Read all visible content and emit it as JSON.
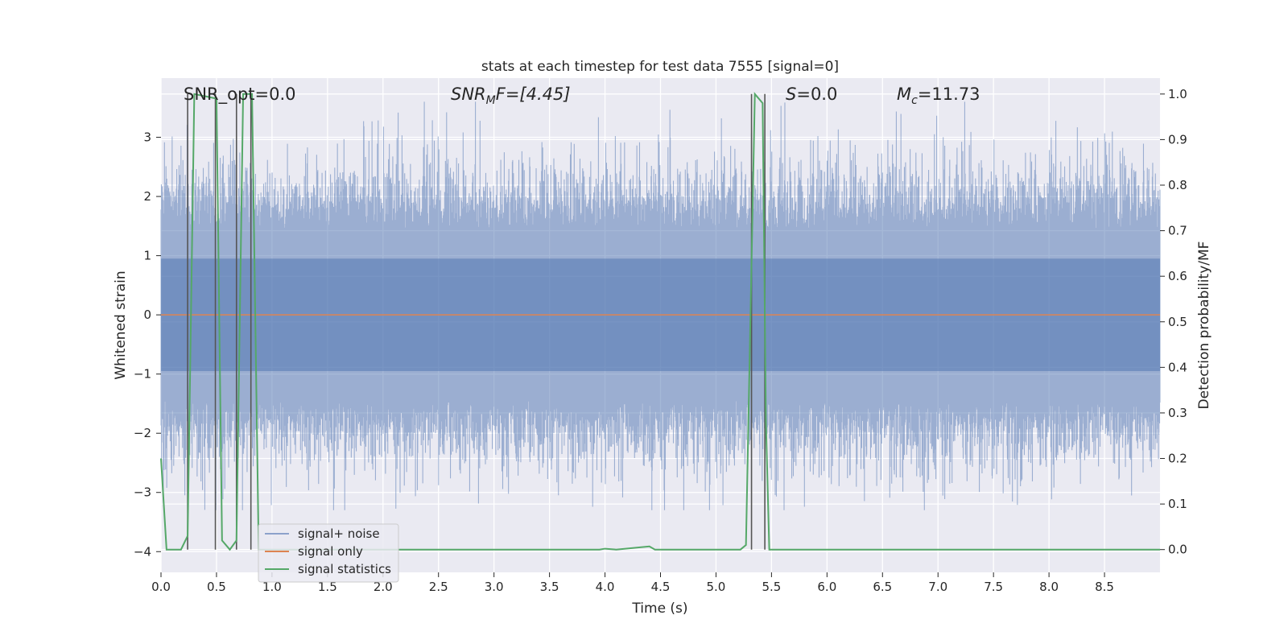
{
  "chart_data": {
    "type": "line",
    "title": "stats at each timestep for test data 7555 [signal=0]",
    "xlabel": "Time (s)",
    "ylabel": "Whitened strain",
    "y2label": "Detection probability/MF",
    "xlim": [
      0,
      9
    ],
    "ylim": [
      -4.35,
      4.0
    ],
    "y2lim": [
      -0.05,
      1.035
    ],
    "xticks": [
      "0.0",
      "0.5",
      "1.0",
      "1.5",
      "2.0",
      "2.5",
      "3.0",
      "3.5",
      "4.0",
      "4.5",
      "5.0",
      "5.5",
      "6.0",
      "6.5",
      "7.0",
      "7.5",
      "8.0",
      "8.5"
    ],
    "yticks": [
      "3",
      "2",
      "1",
      "0",
      "−1",
      "−2",
      "−3",
      "−4"
    ],
    "y2ticks": [
      "1.0",
      "0.9",
      "0.8",
      "0.7",
      "0.6",
      "0.5",
      "0.4",
      "0.3",
      "0.2",
      "0.1",
      "0.0"
    ],
    "grid": true,
    "legend_position": "lower-left",
    "annotations": {
      "snr_opt": "SNR_opt=0.0",
      "snr_mf_main": "SNR",
      "snr_mf_sub": "M",
      "snr_mf_rest": "F=[4.45]",
      "s_italic": "S",
      "s_rest": "=0.0",
      "mc_italic": "M",
      "mc_sub": "c",
      "mc_rest": "=11.73"
    },
    "series": [
      {
        "name": "signal+ noise",
        "color": "#4c72b0",
        "kind": "noise",
        "envelope": 1.45,
        "y_range": [
          -3.3,
          3.6
        ]
      },
      {
        "name": "signal only",
        "color": "#dd8452",
        "x": [
          0,
          9
        ],
        "y": [
          0,
          0
        ]
      },
      {
        "name": "signal statistics",
        "color": "#55a868",
        "axis": "right",
        "x": [
          0.0,
          0.05,
          0.18,
          0.24,
          0.3,
          0.5,
          0.55,
          0.62,
          0.68,
          0.74,
          0.82,
          0.88,
          3.95,
          4.0,
          4.1,
          4.4,
          4.45,
          4.55,
          5.22,
          5.27,
          5.35,
          5.42,
          5.45,
          5.48,
          9.0
        ],
        "y": [
          0.2,
          0.0,
          0.0,
          0.03,
          1.0,
          0.99,
          0.02,
          0.0,
          0.02,
          1.0,
          1.0,
          0.0,
          0.0,
          0.002,
          0.0,
          0.007,
          0.0,
          0.0,
          0.0,
          0.01,
          1.0,
          0.98,
          0.28,
          0.0,
          0.0
        ]
      }
    ],
    "vlines": [
      {
        "x": 0.24,
        "y": [
          0.0,
          1.0
        ]
      },
      {
        "x": 0.49,
        "y": [
          0.0,
          1.0
        ]
      },
      {
        "x": 0.68,
        "y": [
          0.0,
          1.0
        ]
      },
      {
        "x": 0.81,
        "y": [
          0.0,
          1.0
        ]
      },
      {
        "x": 5.32,
        "y": [
          0.0,
          1.0
        ]
      },
      {
        "x": 5.44,
        "y": [
          0.0,
          1.0
        ]
      }
    ],
    "colors": {
      "background": "#eaeaf2",
      "grid": "#ffffff",
      "vline": "#555555"
    }
  }
}
